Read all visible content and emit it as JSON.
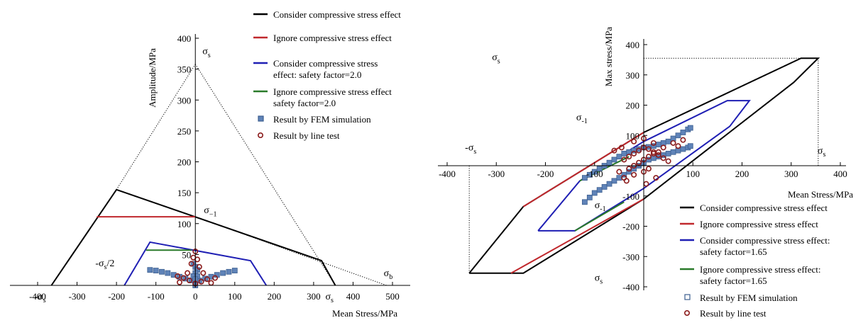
{
  "chart_data": [
    {
      "type": "line",
      "xlabel": "Mean Stress/MPa",
      "ylabel": "Amplitude/MPa",
      "xlim": [
        -430,
        510
      ],
      "ylim": [
        0,
        420
      ],
      "x_ticks": [
        "-400",
        "-300",
        "-200",
        "-100",
        "0",
        "100",
        "200",
        "300",
        "400",
        "500"
      ],
      "x_tick_values": [
        -400,
        -300,
        -200,
        -100,
        0,
        100,
        200,
        300,
        400,
        500
      ],
      "y_ticks": [
        "50",
        "100",
        "150",
        "200",
        "250",
        "300",
        "350",
        "400"
      ],
      "y_tick_values": [
        50,
        100,
        150,
        200,
        250,
        300,
        350,
        400
      ],
      "legend_position": "top-right",
      "series": [
        {
          "name": "Consider compressive stress effect",
          "color": "#000000",
          "points": [
            [
              -365,
              0
            ],
            [
              -200,
              155
            ],
            [
              320,
              40
            ],
            [
              355,
              0
            ]
          ]
        },
        {
          "name": "Ignore compressive stress effect",
          "color": "#c0282d",
          "points": [
            [
              -250,
              111
            ],
            [
              0,
              111
            ]
          ]
        },
        {
          "name": "Consider compressive stress effect: safety factor=2.0",
          "color": "#1f1fb4",
          "points": [
            [
              -180,
              0
            ],
            [
              -115,
              70
            ],
            [
              140,
              40
            ],
            [
              180,
              0
            ]
          ]
        },
        {
          "name": "Ignore compressive stress effect safety factor=2.0",
          "color": "#2a7a2a",
          "points": [
            [
              -125,
              57
            ],
            [
              -10,
              57
            ]
          ]
        }
      ],
      "dotted_lines": [
        {
          "points": [
            [
              -200,
              155
            ],
            [
              0,
              358
            ]
          ]
        },
        {
          "points": [
            [
              0,
              358
            ],
            [
              355,
              0
            ]
          ]
        },
        {
          "points": [
            [
              0,
              111
            ],
            [
              485,
              0
            ]
          ]
        }
      ],
      "scatter": [
        {
          "name": "Result by FEM simulation",
          "marker": "square",
          "color": "#5f83b8",
          "points": [
            [
              -115,
              25
            ],
            [
              -100,
              24
            ],
            [
              -85,
              22
            ],
            [
              -70,
              20
            ],
            [
              -55,
              17
            ],
            [
              -40,
              14
            ],
            [
              -25,
              11
            ],
            [
              -10,
              8
            ],
            [
              0,
              5
            ],
            [
              10,
              8
            ],
            [
              25,
              11
            ],
            [
              40,
              14
            ],
            [
              55,
              17
            ],
            [
              70,
              20
            ],
            [
              85,
              22
            ],
            [
              100,
              24
            ],
            [
              -5,
              35
            ],
            [
              0,
              30
            ],
            [
              5,
              25
            ],
            [
              0,
              20
            ],
            [
              -5,
              15
            ],
            [
              5,
              15
            ],
            [
              0,
              10
            ],
            [
              0,
              0
            ]
          ]
        },
        {
          "name": "Result by line test",
          "marker": "circle",
          "color": "#8b1c1c",
          "points": [
            [
              0,
              55
            ],
            [
              -5,
              45
            ],
            [
              5,
              42
            ],
            [
              -10,
              35
            ],
            [
              10,
              30
            ],
            [
              -20,
              20
            ],
            [
              20,
              20
            ],
            [
              -30,
              12
            ],
            [
              30,
              10
            ],
            [
              -15,
              8
            ],
            [
              15,
              6
            ],
            [
              0,
              3
            ],
            [
              -40,
              5
            ],
            [
              40,
              4
            ],
            [
              50,
              12
            ],
            [
              -45,
              15
            ]
          ]
        }
      ],
      "annotations": [
        {
          "text": "σs",
          "x": 0,
          "y": 358
        },
        {
          "text": "σ−1",
          "x": 0,
          "y": 111
        },
        {
          "text": "σb",
          "x": 485,
          "y": 0
        },
        {
          "text": "-σs/2",
          "x": -178,
          "y": 22
        },
        {
          "text": "-σs",
          "x": -365,
          "y": 0
        },
        {
          "text": "σs",
          "x": 355,
          "y": 0
        }
      ]
    },
    {
      "type": "line",
      "xlabel": "Mean Stress/MPa",
      "ylabel": "Max stress/MPa",
      "xlim": [
        -400,
        420
      ],
      "ylim": [
        -420,
        420
      ],
      "x_ticks": [
        "-400",
        "-300",
        "-200",
        "-100",
        "100",
        "200",
        "300",
        "400"
      ],
      "x_tick_values": [
        -400,
        -300,
        -200,
        -100,
        100,
        200,
        300,
        400
      ],
      "y_ticks": [
        "400",
        "300",
        "200",
        "100",
        "-100",
        "-200",
        "-300",
        "-400"
      ],
      "y_tick_values": [
        400,
        300,
        200,
        100,
        -100,
        -200,
        -300,
        -400
      ],
      "legend_position": "bottom-right",
      "series": [
        {
          "name": "Consider compressive stress effect",
          "color": "#000000",
          "points": [
            [
              -355,
              -355
            ],
            [
              -245,
              -135
            ],
            [
              0,
              110
            ],
            [
              320,
              355
            ],
            [
              355,
              355
            ],
            [
              355,
              355
            ],
            [
              305,
              275
            ],
            [
              0,
              -110
            ],
            [
              -245,
              -355
            ],
            [
              -355,
              -355
            ]
          ]
        },
        {
          "name": "Ignore compressive stress effect",
          "color": "#c0282d",
          "multi": [
            [
              [
                -245,
                -135
              ],
              [
                0,
                110
              ]
            ],
            [
              [
                -270,
                -355
              ],
              [
                0,
                -110
              ]
            ]
          ]
        },
        {
          "name": "Consider compressive stress effect: safety factor=1.65",
          "color": "#1f1fb4",
          "points": [
            [
              -215,
              -215
            ],
            [
              -130,
              -50
            ],
            [
              0,
              80
            ],
            [
              170,
              215
            ],
            [
              215,
              215
            ],
            [
              175,
              130
            ],
            [
              0,
              -75
            ],
            [
              -140,
              -215
            ],
            [
              -215,
              -215
            ]
          ]
        },
        {
          "name": "Ignore compressive stress effect: safety factor=1.65",
          "color": "#2a7a2a",
          "multi": [
            [
              [
                -130,
                -50
              ],
              [
                -30,
                30
              ]
            ],
            [
              [
                -140,
                -215
              ],
              [
                -40,
                -120
              ]
            ]
          ]
        }
      ],
      "dotted_lines": [
        {
          "points": [
            [
              -355,
              0
            ],
            [
              -355,
              -355
            ]
          ]
        },
        {
          "points": [
            [
              -355,
              -355
            ],
            [
              -245,
              -355
            ]
          ]
        },
        {
          "points": [
            [
              0,
              355
            ],
            [
              355,
              355
            ]
          ]
        },
        {
          "points": [
            [
              355,
              355
            ],
            [
              355,
              0
            ]
          ]
        }
      ],
      "scatter": [
        {
          "name": "Result by FEM simulation",
          "marker": "square",
          "color": "#5f83b8",
          "points": [
            [
              -120,
              -40
            ],
            [
              -110,
              -30
            ],
            [
              -100,
              -20
            ],
            [
              -90,
              -10
            ],
            [
              -80,
              0
            ],
            [
              -70,
              10
            ],
            [
              -60,
              20
            ],
            [
              -50,
              30
            ],
            [
              -40,
              40
            ],
            [
              -30,
              45
            ],
            [
              -20,
              50
            ],
            [
              -10,
              55
            ],
            [
              0,
              60
            ],
            [
              10,
              62
            ],
            [
              20,
              65
            ],
            [
              30,
              70
            ],
            [
              40,
              75
            ],
            [
              50,
              80
            ],
            [
              60,
              90
            ],
            [
              70,
              100
            ],
            [
              80,
              110
            ],
            [
              90,
              120
            ],
            [
              95,
              125
            ],
            [
              -120,
              -120
            ],
            [
              -110,
              -105
            ],
            [
              -100,
              -90
            ],
            [
              -90,
              -80
            ],
            [
              -80,
              -70
            ],
            [
              -70,
              -60
            ],
            [
              -60,
              -50
            ],
            [
              -50,
              -40
            ],
            [
              -40,
              -30
            ],
            [
              -30,
              -20
            ],
            [
              -20,
              -10
            ],
            [
              -10,
              0
            ],
            [
              0,
              10
            ],
            [
              10,
              20
            ],
            [
              20,
              25
            ],
            [
              30,
              30
            ],
            [
              40,
              35
            ],
            [
              50,
              40
            ],
            [
              60,
              45
            ],
            [
              70,
              50
            ],
            [
              80,
              55
            ],
            [
              90,
              60
            ],
            [
              95,
              65
            ]
          ]
        },
        {
          "name": "Result by line test",
          "marker": "circle",
          "color": "#8b1c1c",
          "points": [
            [
              -40,
              20
            ],
            [
              -30,
              30
            ],
            [
              -20,
              40
            ],
            [
              -10,
              50
            ],
            [
              0,
              60
            ],
            [
              10,
              55
            ],
            [
              20,
              45
            ],
            [
              30,
              35
            ],
            [
              40,
              25
            ],
            [
              50,
              15
            ],
            [
              -30,
              -10
            ],
            [
              -20,
              0
            ],
            [
              -10,
              10
            ],
            [
              0,
              20
            ],
            [
              10,
              30
            ],
            [
              20,
              40
            ],
            [
              30,
              45
            ],
            [
              -20,
              80
            ],
            [
              0,
              90
            ],
            [
              20,
              75
            ],
            [
              -50,
              -20
            ],
            [
              -40,
              -40
            ],
            [
              -20,
              -30
            ],
            [
              0,
              -20
            ],
            [
              10,
              -10
            ],
            [
              -35,
              -50
            ],
            [
              60,
              75
            ],
            [
              70,
              65
            ],
            [
              80,
              85
            ],
            [
              40,
              60
            ],
            [
              -45,
              60
            ],
            [
              -60,
              50
            ],
            [
              25,
              -40
            ],
            [
              5,
              -60
            ]
          ]
        }
      ],
      "annotations": [
        {
          "text": "σs",
          "x": -300,
          "y": 320
        },
        {
          "text": "σ-1",
          "x": -120,
          "y": 150
        },
        {
          "text": "-σs",
          "x": -355,
          "y": 50
        },
        {
          "text": "σs",
          "x": 345,
          "y": 40
        },
        {
          "text": "σ-1",
          "x": -100,
          "y": -140
        },
        {
          "text": "σs",
          "x": -100,
          "y": -380
        }
      ]
    }
  ]
}
